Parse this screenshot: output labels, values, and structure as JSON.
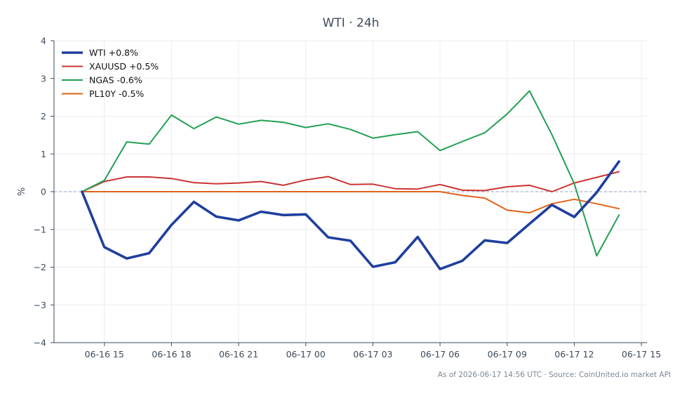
{
  "chart_data": {
    "type": "line",
    "title": "WTI · 24h",
    "ylabel": "%",
    "xlabel": "",
    "ylim": [
      -4,
      4
    ],
    "yticks": [
      {
        "value": 4,
        "label": "4"
      },
      {
        "value": 3,
        "label": "3"
      },
      {
        "value": 2,
        "label": "2"
      },
      {
        "value": 1,
        "label": "1"
      },
      {
        "value": 0,
        "label": "0"
      },
      {
        "value": -1,
        "label": "−1"
      },
      {
        "value": -2,
        "label": "−2"
      },
      {
        "value": -3,
        "label": "−3"
      },
      {
        "value": -4,
        "label": "−4"
      }
    ],
    "xlim": [
      "2026-06-16 12:45",
      "2026-06-17 15:15"
    ],
    "xticks": [
      {
        "value": "2026-06-16 15:00",
        "label": "06-16 15"
      },
      {
        "value": "2026-06-16 18:00",
        "label": "06-16 18"
      },
      {
        "value": "2026-06-16 21:00",
        "label": "06-16 21"
      },
      {
        "value": "2026-06-17 00:00",
        "label": "06-17 00"
      },
      {
        "value": "2026-06-17 03:00",
        "label": "06-17 03"
      },
      {
        "value": "2026-06-17 06:00",
        "label": "06-17 06"
      },
      {
        "value": "2026-06-17 09:00",
        "label": "06-17 09"
      },
      {
        "value": "2026-06-17 12:00",
        "label": "06-17 12"
      },
      {
        "value": "2026-06-17 15:00",
        "label": "06-17 15"
      }
    ],
    "x": [
      "2026-06-16 14:00",
      "2026-06-16 15:00",
      "2026-06-16 16:00",
      "2026-06-16 17:00",
      "2026-06-16 18:00",
      "2026-06-16 19:00",
      "2026-06-16 20:00",
      "2026-06-16 21:00",
      "2026-06-16 22:00",
      "2026-06-16 23:00",
      "2026-06-17 00:00",
      "2026-06-17 01:00",
      "2026-06-17 02:00",
      "2026-06-17 03:00",
      "2026-06-17 04:00",
      "2026-06-17 05:00",
      "2026-06-17 06:00",
      "2026-06-17 07:00",
      "2026-06-17 08:00",
      "2026-06-17 09:00",
      "2026-06-17 10:00",
      "2026-06-17 11:00",
      "2026-06-17 12:00",
      "2026-06-17 13:00",
      "2026-06-17 14:00"
    ],
    "series": [
      {
        "name": "WTI +0.8%",
        "color": "#1f3f9e",
        "values": [
          0,
          -1.47,
          -1.77,
          -1.63,
          -0.88,
          -0.27,
          -0.66,
          -0.76,
          -0.53,
          -0.62,
          -0.6,
          -1.21,
          -1.3,
          -1.99,
          -1.87,
          -1.2,
          -2.05,
          -1.83,
          -1.29,
          -1.36,
          -0.85,
          -0.35,
          -0.67,
          -0.02,
          0.8
        ]
      },
      {
        "name": "XAUUSD +0.5%",
        "color": "#cc3333",
        "values": [
          0,
          0.27,
          0.39,
          0.39,
          0.35,
          0.24,
          0.21,
          0.23,
          0.27,
          0.17,
          0.31,
          0.4,
          0.19,
          0.2,
          0.08,
          0.07,
          0.19,
          0.04,
          0.03,
          0.13,
          0.17,
          0.0,
          0.23,
          0.38,
          0.53
        ]
      },
      {
        "name": "NGAS -0.6%",
        "color": "#22a052",
        "values": [
          0,
          0.3,
          1.32,
          1.26,
          2.03,
          1.67,
          1.98,
          1.79,
          1.89,
          1.84,
          1.7,
          1.8,
          1.65,
          1.42,
          1.51,
          1.59,
          1.09,
          1.33,
          1.56,
          2.06,
          2.67,
          1.51,
          0.21,
          -1.7,
          -0.62
        ]
      },
      {
        "name": "PL10Y -0.5%",
        "color": "#e0621a",
        "values": [
          0,
          0,
          0,
          0,
          0,
          0,
          0,
          0,
          0,
          0,
          0,
          0,
          0,
          0,
          0,
          0,
          0,
          -0.1,
          -0.17,
          -0.49,
          -0.56,
          -0.32,
          -0.2,
          -0.32,
          -0.45
        ]
      }
    ],
    "grid": true,
    "legend": "top-left",
    "zero_line": true
  },
  "footnote": "As of 2026-06-17 14:56 UTC · Source: CoinUnited.io market API"
}
